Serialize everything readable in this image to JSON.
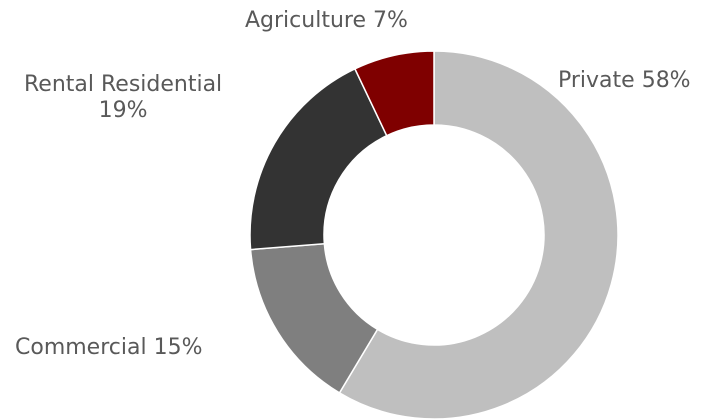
{
  "chart_data": {
    "type": "pie",
    "variant": "donut",
    "categories": [
      "Private",
      "Commercial",
      "Rental Residential",
      "Agriculture"
    ],
    "values": [
      58,
      15,
      19,
      7
    ],
    "unit": "%",
    "colors": [
      "#bfbfbf",
      "#7f7f7f",
      "#333333",
      "#7f0000"
    ],
    "labels": {
      "private": "Private 58%",
      "commercial": "Commercial 15%",
      "rental_line1": "Rental Residential",
      "rental_line2": "19%",
      "agriculture": "Agriculture 7%"
    },
    "legend": "none",
    "grid": false
  }
}
